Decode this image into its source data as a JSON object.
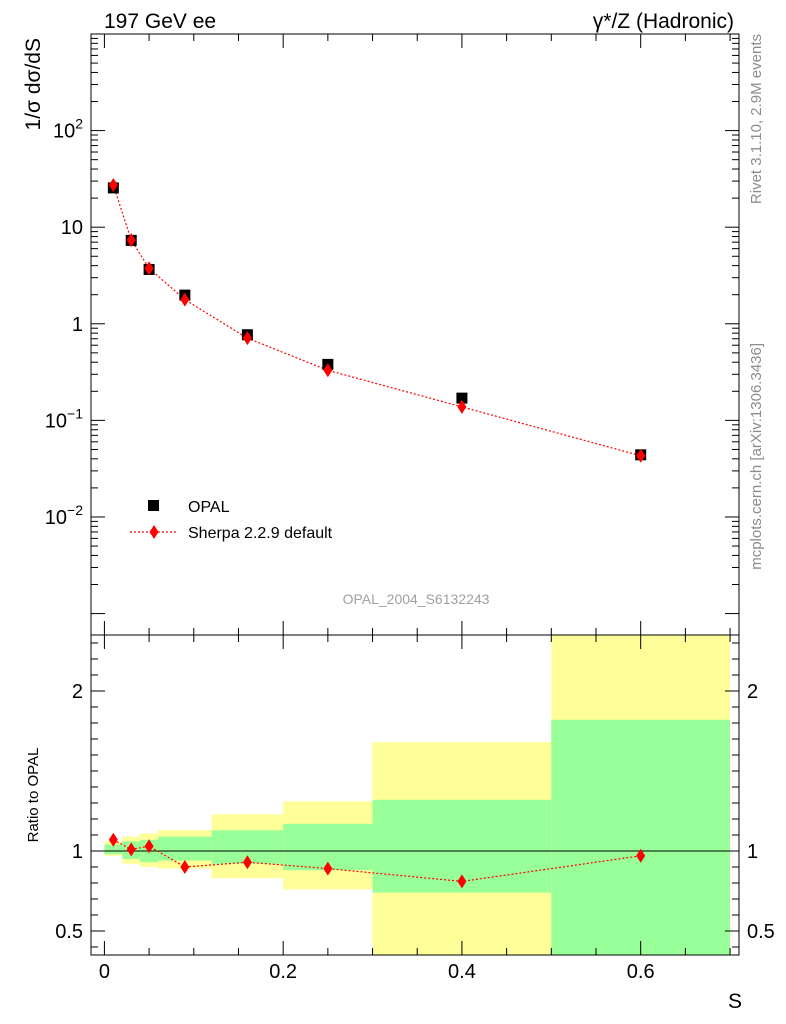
{
  "header": {
    "left_title": "197 GeV ee",
    "right_title": "γ*/Z (Hadronic)"
  },
  "side_labels": {
    "rivet": "Rivet 3.1.10,  2.9M events",
    "mcplots": "mcplots.cern.ch [arXiv:1306.3436]"
  },
  "watermark": "OPAL_2004_S6132243",
  "colors": {
    "mc": "#ff0000",
    "data": "#000000",
    "band_inner": "#99ff99",
    "band_outer": "#ffff99",
    "side_text": "#8c8c8c"
  },
  "chart_data": [
    {
      "type": "scatter",
      "ylabel": "1/σ dσ/dS",
      "yscale": "log",
      "xlim": [
        -0.015,
        0.71
      ],
      "ylim": [
        0.0006,
        1000
      ],
      "y_tick_labels": [
        "10^-2",
        "10^-1",
        "1",
        "10",
        "10^2"
      ],
      "series": [
        {
          "name": "OPAL",
          "marker": "square",
          "x": [
            0.01,
            0.03,
            0.05,
            0.09,
            0.16,
            0.25,
            0.4,
            0.6
          ],
          "y": [
            25.5,
            7.3,
            3.65,
            1.98,
            0.77,
            0.38,
            0.17,
            0.044
          ]
        },
        {
          "name": "Sherpa 2.2.9 default",
          "marker": "diamond",
          "line": "dotted",
          "x": [
            0.01,
            0.03,
            0.05,
            0.09,
            0.16,
            0.25,
            0.4,
            0.6
          ],
          "y": [
            27.3,
            7.35,
            3.75,
            1.78,
            0.71,
            0.33,
            0.138,
            0.043
          ]
        }
      ],
      "legend": "bottom-left"
    },
    {
      "type": "line",
      "xlabel": "S",
      "ylabel": "Ratio to OPAL",
      "xlim": [
        -0.015,
        0.71
      ],
      "ylim": [
        0.35,
        2.35
      ],
      "x_ticks": [
        0,
        0.2,
        0.4,
        0.6
      ],
      "y_ticks": [
        0.5,
        1,
        2
      ],
      "reference_line": 1,
      "bins": [
        {
          "lo": 0.0,
          "hi": 0.02,
          "inner": [
            0.98,
            1.04
          ],
          "outer": [
            0.97,
            1.06
          ]
        },
        {
          "lo": 0.02,
          "hi": 0.04,
          "inner": [
            0.95,
            1.06
          ],
          "outer": [
            0.92,
            1.09
          ]
        },
        {
          "lo": 0.04,
          "hi": 0.06,
          "inner": [
            0.93,
            1.07
          ],
          "outer": [
            0.9,
            1.11
          ]
        },
        {
          "lo": 0.06,
          "hi": 0.12,
          "inner": [
            0.94,
            1.09
          ],
          "outer": [
            0.89,
            1.13
          ]
        },
        {
          "lo": 0.12,
          "hi": 0.2,
          "inner": [
            0.92,
            1.13
          ],
          "outer": [
            0.83,
            1.23
          ]
        },
        {
          "lo": 0.2,
          "hi": 0.3,
          "inner": [
            0.88,
            1.17
          ],
          "outer": [
            0.76,
            1.31
          ]
        },
        {
          "lo": 0.3,
          "hi": 0.5,
          "inner": [
            0.74,
            1.32
          ],
          "outer": [
            0.35,
            1.68
          ]
        },
        {
          "lo": 0.5,
          "hi": 0.7,
          "inner": [
            0.35,
            1.82
          ],
          "outer": [
            0.35,
            2.35
          ]
        }
      ],
      "series": [
        {
          "name": "Sherpa 2.2.9 default",
          "x": [
            0.01,
            0.03,
            0.05,
            0.09,
            0.16,
            0.25,
            0.4,
            0.6
          ],
          "y": [
            1.07,
            1.01,
            1.03,
            0.9,
            0.93,
            0.89,
            0.81,
            0.97
          ]
        }
      ]
    }
  ]
}
